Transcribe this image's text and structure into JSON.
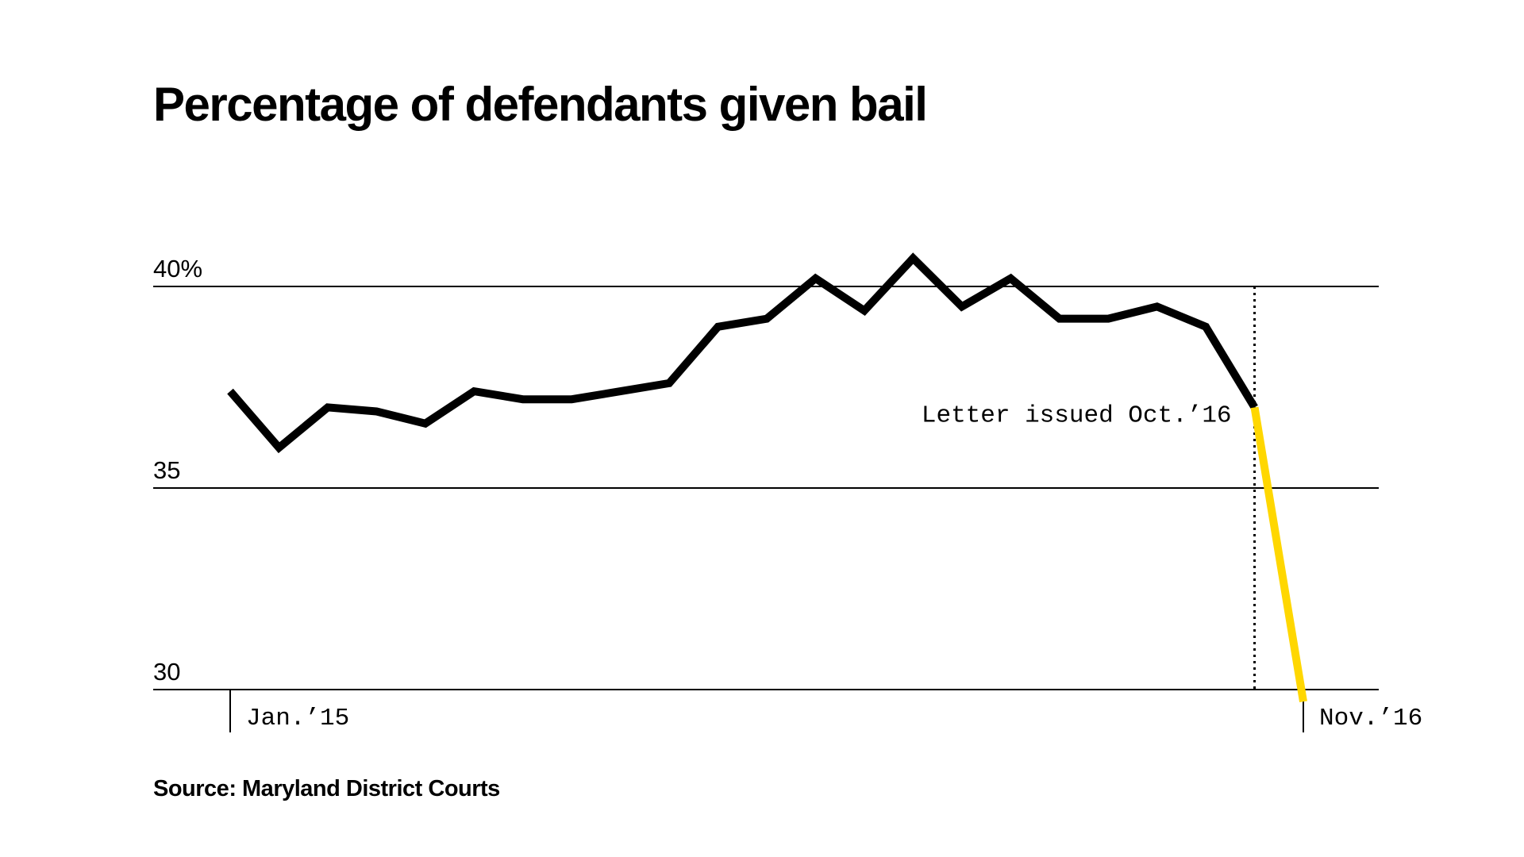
{
  "chart_data": {
    "type": "line",
    "title": "Percentage of defendants given bail",
    "source": "Source: Maryland District Courts",
    "xlabel": "",
    "ylabel": "",
    "ylim": [
      30,
      40
    ],
    "yticks": [
      {
        "value": 40,
        "label": "40%"
      },
      {
        "value": 35,
        "label": "35"
      },
      {
        "value": 30,
        "label": "30"
      }
    ],
    "xtick_labels": [
      {
        "index": 0,
        "label": "Jan.’15"
      },
      {
        "index": 22,
        "label": "Nov.’16"
      }
    ],
    "x": [
      "Jan. 2015",
      "Feb. 2015",
      "Mar. 2015",
      "Apr. 2015",
      "May 2015",
      "Jun. 2015",
      "Jul. 2015",
      "Aug. 2015",
      "Sep. 2015",
      "Oct. 2015",
      "Nov. 2015",
      "Dec. 2015",
      "Jan. 2016",
      "Feb. 2016",
      "Mar. 2016",
      "Apr. 2016",
      "May 2016",
      "Jun. 2016",
      "Jul. 2016",
      "Aug. 2016",
      "Sep. 2016",
      "Oct. 2016",
      "Nov. 2016"
    ],
    "series": [
      {
        "values": [
          37.4,
          36.0,
          37.0,
          36.9,
          36.6,
          37.4,
          37.2,
          37.2,
          37.4,
          37.6,
          39.0,
          39.2,
          40.2,
          39.4,
          40.7,
          39.5,
          40.2,
          39.2,
          39.2,
          39.5,
          39.0,
          37.0,
          29.7
        ],
        "color": "#000000"
      }
    ],
    "highlight": {
      "from_index": 21,
      "to_index": 22,
      "color": "#FFD700"
    },
    "annotation": {
      "index": 21,
      "text": "Letter issued Oct.’16",
      "line_style": "dotted"
    },
    "grid": true
  }
}
